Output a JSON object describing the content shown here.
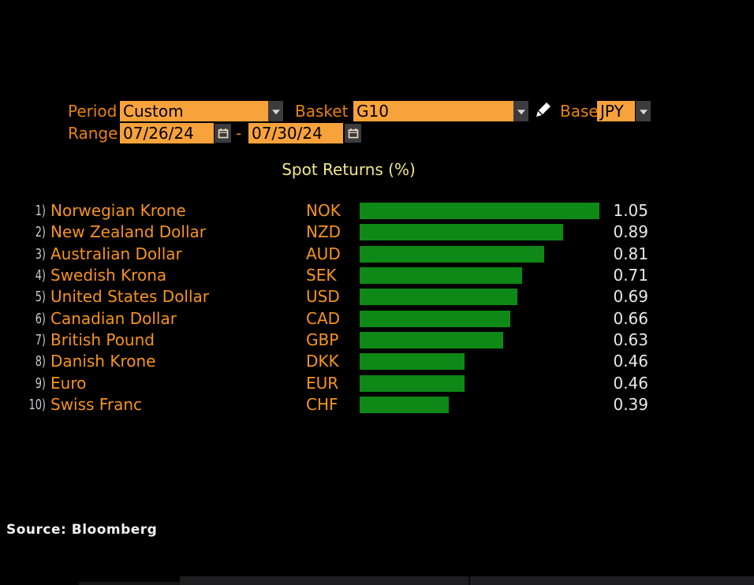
{
  "controls": {
    "period_label": "Period",
    "period_value": "Custom",
    "basket_label": "Basket",
    "basket_value": "G10",
    "base_label": "Base",
    "base_value": "JPY",
    "range_label": "Range",
    "range_start": "07/26/24",
    "range_separator": "-",
    "range_end": "07/30/24"
  },
  "chart_data": {
    "type": "bar",
    "orientation": "horizontal",
    "title": "Spot Returns (%)",
    "categories": [
      "Norwegian Krone",
      "New Zealand Dollar",
      "Australian Dollar",
      "Swedish Krona",
      "United States Dollar",
      "Canadian Dollar",
      "British Pound",
      "Danish Krone",
      "Euro",
      "Swiss Franc"
    ],
    "codes": [
      "NOK",
      "NZD",
      "AUD",
      "SEK",
      "USD",
      "CAD",
      "GBP",
      "DKK",
      "EUR",
      "CHF"
    ],
    "values": [
      1.05,
      0.89,
      0.81,
      0.71,
      0.69,
      0.66,
      0.63,
      0.46,
      0.46,
      0.39
    ],
    "ranks": [
      "1)",
      "2)",
      "3)",
      "4)",
      "5)",
      "6)",
      "7)",
      "8)",
      "9)",
      "10)"
    ],
    "xlim": [
      0,
      1.1
    ],
    "grid": false,
    "legend": false,
    "bar_color": "#0E8816",
    "value_label_color": "#E8E8E8"
  },
  "footer": {
    "source": "Source: Bloomberg"
  },
  "colors": {
    "background": "#000000",
    "label_orange": "#E8820E",
    "field_orange": "#F7A23B",
    "name_orange": "#F7941D",
    "title_yellow": "#EFE98C",
    "bar_green": "#0E8816",
    "rank_gray": "#C7CBD3"
  },
  "icons": {
    "period_dropdown": "chevron-down",
    "basket_dropdown": "chevron-down",
    "base_dropdown": "chevron-down",
    "edit": "pencil",
    "date_picker": "calendar"
  }
}
